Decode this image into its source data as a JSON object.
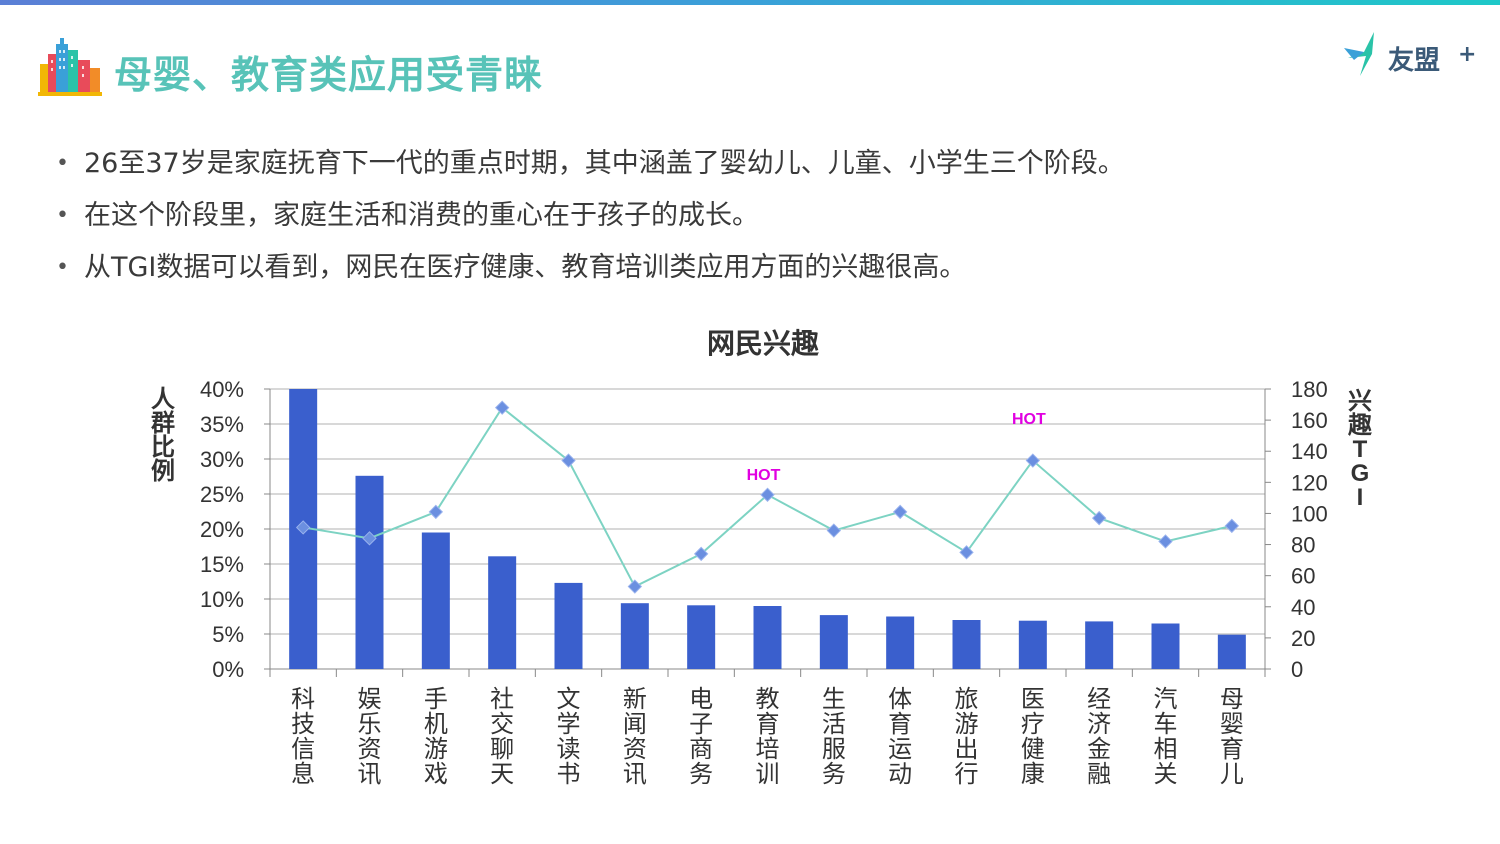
{
  "header": {
    "title": "母婴、教育类应用受青睐",
    "brand": "友盟",
    "brand_plus": "+"
  },
  "bullets": [
    "26至37岁是家庭抚育下一代的重点时期，其中涵盖了婴幼儿、儿童、小学生三个阶段。",
    "在这个阶段里，家庭生活和消费的重心在于孩子的成长。",
    "从TGI数据可以看到，网民在医疗健康、教育培训类应用方面的兴趣很高。"
  ],
  "colors": {
    "title": "#58c3b8",
    "bar": "#3a5fcd",
    "line": "#7dd3c3",
    "marker": "#6b8fe0",
    "hot": "#e100e1"
  },
  "chart_data": {
    "type": "bar+line",
    "title": "网民兴趣",
    "categories": [
      "科技信息",
      "娱乐资讯",
      "手机游戏",
      "社交聊天",
      "文学读书",
      "新闻资讯",
      "电子商务",
      "教育培训",
      "生活服务",
      "体育运动",
      "旅游出行",
      "医疗健康",
      "经济金融",
      "汽车相关",
      "母婴育儿"
    ],
    "series": [
      {
        "type": "bar",
        "axis": "left",
        "values": [
          40,
          27.6,
          19.5,
          16.1,
          12.3,
          9.4,
          9.1,
          9.0,
          7.7,
          7.5,
          7.0,
          6.9,
          6.8,
          6.5,
          4.9
        ]
      },
      {
        "type": "line",
        "axis": "right",
        "values": [
          91,
          84,
          101,
          168,
          134,
          53,
          74,
          112,
          89,
          101,
          75,
          134,
          97,
          82,
          92
        ]
      }
    ],
    "ylabel": "人群比例",
    "y2label": "兴趣TGI",
    "ylim": [
      0,
      40
    ],
    "y2lim": [
      0,
      180
    ],
    "yticks": [
      "0%",
      "5%",
      "10%",
      "15%",
      "20%",
      "25%",
      "30%",
      "35%",
      "40%"
    ],
    "y2ticks": [
      "0",
      "20",
      "40",
      "60",
      "80",
      "100",
      "120",
      "140",
      "160",
      "180"
    ],
    "annotations": [
      {
        "text": "HOT",
        "category": "教育培训"
      },
      {
        "text": "HOT",
        "category": "医疗健康"
      }
    ],
    "grid": true
  }
}
